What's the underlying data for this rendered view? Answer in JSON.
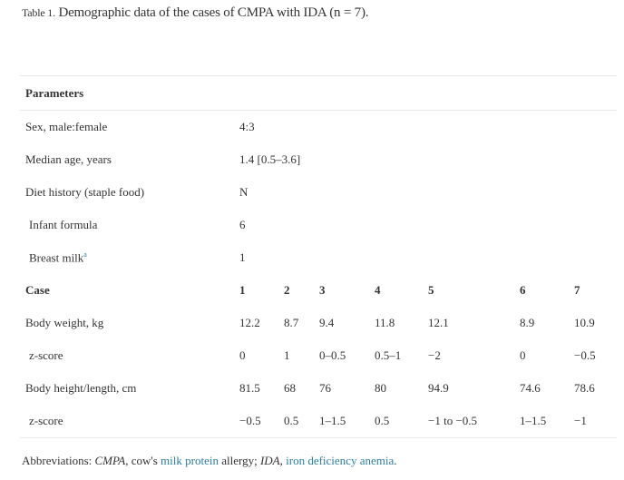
{
  "caption": {
    "label": "Table 1.",
    "text": "Demographic data of the cases of CMPA with IDA (n = 7)."
  },
  "header": "Parameters",
  "simple_rows": [
    {
      "label": "Sex, male:female",
      "value": "4:3",
      "indent": false
    },
    {
      "label": "Median age, years",
      "value": "1.4 [0.5–3.6]",
      "indent": false
    },
    {
      "label": "Diet history (staple food)",
      "value": "N",
      "indent": false
    },
    {
      "label": "Infant formula",
      "value": "6",
      "indent": true
    },
    {
      "label": "Breast milk",
      "sup": "a",
      "value": "1",
      "indent": true
    }
  ],
  "case_header": {
    "label": "Case",
    "cases": [
      "1",
      "2",
      "3",
      "4",
      "5",
      "6",
      "7"
    ]
  },
  "case_rows": [
    {
      "label": "Body weight, kg",
      "values": [
        "12.2",
        "8.7",
        "9.4",
        "11.8",
        "12.1",
        "8.9",
        "10.9"
      ],
      "indent": false
    },
    {
      "label": "z-score",
      "values": [
        "0",
        "1",
        "0–0.5",
        "0.5–1",
        "−2",
        "0",
        "−0.5"
      ],
      "indent": true
    },
    {
      "label": "Body height/length, cm",
      "values": [
        "81.5",
        "68",
        "76",
        "80",
        "94.9",
        "74.6",
        "78.6"
      ],
      "indent": false
    },
    {
      "label": "z-score",
      "values": [
        "−0.5",
        "0.5",
        "1–1.5",
        "0.5",
        "−1 to −0.5",
        "1–1.5",
        "−1"
      ],
      "indent": true
    }
  ],
  "footnote": {
    "prefix": "Abbreviations: ",
    "abbr1": "CMPA",
    "t1": ", cow's ",
    "link1": "milk protein",
    "t2": " allergy; ",
    "abbr2": "IDA",
    "t3": ", ",
    "link2": "iron deficiency anemia",
    "t4": "."
  },
  "colors": {
    "link": "#2a7fa0",
    "text": "#333333",
    "rule": "#e8e8e8"
  }
}
